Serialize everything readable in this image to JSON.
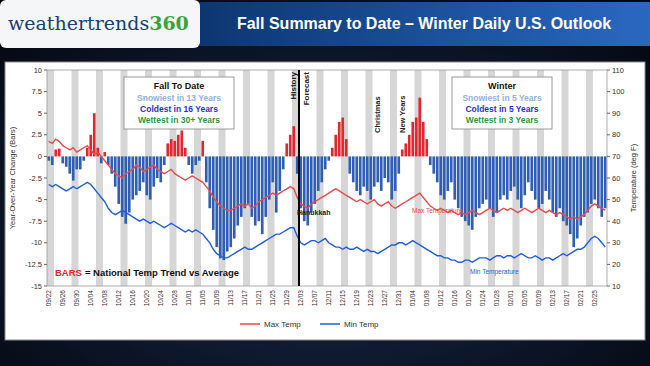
{
  "chart_data": {
    "type": "bar",
    "title": "Fall Summary to Date – Winter Daily U.S. Outlook",
    "logo": [
      "weathertrends",
      "360"
    ],
    "categories": [
      "09/22",
      null,
      null,
      null,
      "09/26",
      null,
      null,
      null,
      "09/30",
      null,
      null,
      null,
      "10/04",
      null,
      null,
      null,
      "10/08",
      null,
      null,
      null,
      "10/12",
      null,
      null,
      null,
      "10/16",
      null,
      null,
      null,
      "10/20",
      null,
      null,
      null,
      "10/24",
      null,
      null,
      null,
      "10/28",
      null,
      null,
      null,
      "11/01",
      null,
      null,
      null,
      "11/05",
      null,
      null,
      null,
      "11/09",
      null,
      null,
      null,
      "11/13",
      null,
      null,
      null,
      "11/17",
      null,
      null,
      null,
      "11/21",
      null,
      null,
      null,
      "11/25",
      null,
      null,
      null,
      "11/29",
      null,
      null,
      null,
      "12/03",
      null,
      null,
      null,
      "12/07",
      null,
      null,
      null,
      "12/11",
      null,
      null,
      null,
      "12/15",
      null,
      null,
      null,
      "12/19",
      null,
      null,
      null,
      "12/23",
      null,
      null,
      null,
      "12/27",
      null,
      null,
      null,
      "12/31",
      null,
      null,
      null,
      "01/04",
      null,
      null,
      null,
      "01/08",
      null,
      null,
      null,
      "01/12",
      null,
      null,
      null,
      "01/16",
      null,
      null,
      null,
      "01/20",
      null,
      null,
      null,
      "01/24",
      null,
      null,
      null,
      "01/28",
      null,
      null,
      null,
      "02/01",
      null,
      null,
      null,
      "02/05",
      null,
      null,
      null,
      "02/09",
      null,
      null,
      null,
      "02/13",
      null,
      null,
      null,
      "02/17",
      null,
      null,
      null,
      "02/21",
      null,
      null,
      null,
      "02/25",
      null,
      null,
      null
    ],
    "series": [
      {
        "name": "BARS",
        "type": "bar",
        "values": [
          -0.5,
          -1.0,
          0.8,
          0.9,
          -0.8,
          -1.2,
          -2.0,
          -2.8,
          -1.5,
          -1.5,
          -0.5,
          1.0,
          2.5,
          5.0,
          1.0,
          -0.8,
          0.5,
          -1.0,
          -2.0,
          -3.5,
          -5.5,
          -7.0,
          -7.8,
          -6.5,
          -5.0,
          -4.5,
          -4.0,
          -3.0,
          -4.5,
          -5.0,
          -3.5,
          -2.5,
          -3.0,
          -1.0,
          1.5,
          2.0,
          1.8,
          2.5,
          3.0,
          1.0,
          -1.0,
          -2.0,
          -1.0,
          -0.5,
          1.8,
          -3.0,
          -6.0,
          -8.5,
          -10.5,
          -11.8,
          -12.0,
          -11.0,
          -10.5,
          -9.5,
          -8.0,
          -7.0,
          -6.0,
          -5.5,
          -7.0,
          -8.0,
          -7.5,
          -9.0,
          -7.0,
          -5.0,
          -3.0,
          -6.5,
          -4.0,
          -1.5,
          1.5,
          2.5,
          3.5,
          -2.0,
          -6.0,
          -7.5,
          -8.0,
          -6.5,
          -5.5,
          -4.0,
          -3.0,
          -1.5,
          -0.5,
          1.0,
          2.5,
          4.0,
          4.5,
          2.0,
          -2.0,
          -3.0,
          -4.0,
          -4.5,
          -3.5,
          -4.0,
          -5.0,
          -3.5,
          -3.0,
          -4.0,
          -2.5,
          -3.0,
          -5.0,
          -4.0,
          -2.0,
          0.8,
          1.5,
          2.5,
          4.0,
          4.5,
          6.8,
          4.0,
          2.0,
          -1.0,
          -2.0,
          -3.0,
          -4.5,
          -5.0,
          -4.0,
          -3.0,
          -5.0,
          -6.0,
          -7.0,
          -7.5,
          -8.0,
          -8.5,
          -7.0,
          -6.0,
          -5.5,
          -5.0,
          -6.0,
          -7.0,
          -6.5,
          -5.0,
          -4.5,
          -5.0,
          -4.0,
          -3.5,
          -5.0,
          -6.0,
          -4.5,
          -3.0,
          -4.0,
          -5.0,
          -6.0,
          -5.5,
          -4.0,
          -5.0,
          -6.5,
          -7.0,
          -6.0,
          -7.5,
          -8.0,
          -9.0,
          -10.5,
          -9.5,
          -8.0,
          -7.0,
          -6.5,
          -5.5,
          -5.0,
          -6.0,
          -7.0,
          -6.0
        ],
        "colors": [
          "#2e5eb5",
          "#2e5eb5",
          "#e0282d",
          "#e0282d",
          "#2e5eb5",
          "#2e5eb5",
          "#2e5eb5",
          "#2e5eb5",
          "#2e5eb5",
          "#2e5eb5",
          "#2e5eb5",
          "#e0282d",
          "#e0282d",
          "#e0282d",
          "#e0282d",
          "#2e5eb5",
          "#e0282d",
          "#2e5eb5",
          "#2e5eb5",
          "#2e5eb5",
          "#2e5eb5",
          "#2e5eb5",
          "#2e5eb5",
          "#2e5eb5",
          "#2e5eb5",
          "#2e5eb5",
          "#2e5eb5",
          "#2e5eb5",
          "#2e5eb5",
          "#2e5eb5",
          "#2e5eb5",
          "#2e5eb5",
          "#2e5eb5",
          "#2e5eb5",
          "#e0282d",
          "#e0282d",
          "#e0282d",
          "#e0282d",
          "#e0282d",
          "#e0282d",
          "#2e5eb5",
          "#2e5eb5",
          "#2e5eb5",
          "#2e5eb5",
          "#e0282d",
          "#2e5eb5",
          "#2e5eb5",
          "#2e5eb5",
          "#2e5eb5",
          "#2e5eb5",
          "#2e5eb5",
          "#2e5eb5",
          "#2e5eb5",
          "#2e5eb5",
          "#2e5eb5",
          "#2e5eb5",
          "#2e5eb5",
          "#2e5eb5",
          "#2e5eb5",
          "#2e5eb5",
          "#2e5eb5",
          "#2e5eb5",
          "#2e5eb5",
          "#2e5eb5",
          "#2e5eb5",
          "#2e5eb5",
          "#2e5eb5",
          "#2e5eb5",
          "#e0282d",
          "#e0282d",
          "#e0282d",
          "#2e5eb5",
          "#2e5eb5",
          "#2e5eb5",
          "#2e5eb5",
          "#2e5eb5",
          "#2e5eb5",
          "#2e5eb5",
          "#2e5eb5",
          "#2e5eb5",
          "#2e5eb5",
          "#e0282d",
          "#e0282d",
          "#e0282d",
          "#e0282d",
          "#e0282d",
          "#2e5eb5",
          "#2e5eb5",
          "#2e5eb5",
          "#2e5eb5",
          "#2e5eb5",
          "#2e5eb5",
          "#2e5eb5",
          "#2e5eb5",
          "#2e5eb5",
          "#2e5eb5",
          "#2e5eb5",
          "#2e5eb5",
          "#2e5eb5",
          "#2e5eb5",
          "#2e5eb5",
          "#e0282d",
          "#e0282d",
          "#e0282d",
          "#e0282d",
          "#e0282d",
          "#e0282d",
          "#e0282d",
          "#e0282d",
          "#2e5eb5",
          "#2e5eb5",
          "#2e5eb5",
          "#2e5eb5",
          "#2e5eb5",
          "#2e5eb5",
          "#2e5eb5",
          "#2e5eb5",
          "#2e5eb5",
          "#2e5eb5",
          "#2e5eb5",
          "#2e5eb5",
          "#2e5eb5",
          "#2e5eb5",
          "#2e5eb5",
          "#2e5eb5",
          "#2e5eb5",
          "#2e5eb5",
          "#2e5eb5",
          "#2e5eb5",
          "#2e5eb5",
          "#2e5eb5",
          "#2e5eb5",
          "#2e5eb5",
          "#2e5eb5",
          "#2e5eb5",
          "#2e5eb5",
          "#2e5eb5",
          "#2e5eb5",
          "#2e5eb5",
          "#2e5eb5",
          "#2e5eb5",
          "#2e5eb5",
          "#2e5eb5",
          "#2e5eb5",
          "#2e5eb5",
          "#2e5eb5",
          "#2e5eb5",
          "#2e5eb5",
          "#2e5eb5",
          "#2e5eb5",
          "#2e5eb5",
          "#2e5eb5",
          "#2e5eb5",
          "#2e5eb5",
          "#2e5eb5",
          "#2e5eb5",
          "#2e5eb5",
          "#2e5eb5",
          "#2e5eb5",
          "#2e5eb5"
        ]
      },
      {
        "name": "Max Temp",
        "type": "line",
        "axis": "y2",
        "color": "#f0484c",
        "values": [
          77,
          76,
          78,
          77,
          75,
          74,
          73,
          74,
          72,
          73,
          74,
          75,
          73,
          71,
          72,
          70,
          68,
          66,
          64,
          62,
          61,
          60,
          62,
          63,
          64,
          66,
          65,
          63,
          64,
          65,
          66,
          64,
          63,
          62,
          63,
          64,
          62,
          61,
          60,
          59,
          60,
          61,
          60,
          59,
          58,
          56,
          54,
          51,
          49,
          47,
          46,
          45,
          45,
          46,
          47,
          48,
          47,
          48,
          46,
          47,
          49,
          50,
          51,
          52,
          53,
          52,
          53,
          54,
          55,
          56,
          55,
          51,
          48,
          47,
          46,
          48,
          49,
          50,
          51,
          52,
          53,
          54,
          55,
          54,
          53,
          52,
          51,
          50,
          49,
          50,
          49,
          48,
          49,
          50,
          48,
          47,
          48,
          49,
          47,
          46,
          47,
          48,
          49,
          50,
          51,
          52,
          53,
          51,
          49,
          47,
          46,
          45,
          46,
          45,
          44,
          45,
          44,
          43,
          44,
          43,
          44,
          45,
          44,
          43,
          44,
          45,
          46,
          45,
          44,
          45,
          46,
          45,
          46,
          45,
          44,
          45,
          46,
          45,
          44,
          45,
          46,
          45,
          44,
          45,
          44,
          43,
          44,
          43,
          42,
          41,
          42,
          41,
          42,
          43,
          45,
          47,
          48,
          47,
          46,
          45
        ]
      },
      {
        "name": "Min Temp",
        "type": "line",
        "axis": "y2",
        "color": "#1f5ee0",
        "values": [
          57,
          56,
          57,
          56,
          55,
          54,
          55,
          56,
          55,
          56,
          57,
          58,
          57,
          55,
          53,
          51,
          49,
          46,
          44,
          43,
          44,
          45,
          44,
          43,
          42,
          41,
          40,
          41,
          40,
          39,
          40,
          39,
          38,
          37,
          38,
          39,
          38,
          37,
          36,
          35,
          36,
          35,
          36,
          35,
          34,
          32,
          30,
          27,
          25,
          24,
          23,
          23,
          24,
          25,
          26,
          27,
          28,
          27,
          27,
          28,
          29,
          30,
          31,
          32,
          33,
          34,
          34,
          35,
          36,
          37,
          37,
          33,
          30,
          29,
          30,
          31,
          31,
          30,
          31,
          32,
          30,
          29,
          28,
          28,
          27,
          28,
          27,
          27,
          28,
          27,
          26,
          27,
          26,
          26,
          25,
          26,
          27,
          28,
          29,
          29,
          30,
          30,
          29,
          30,
          31,
          30,
          29,
          28,
          27,
          26,
          25,
          24,
          24,
          23,
          23,
          22,
          22,
          21,
          21,
          22,
          22,
          21,
          22,
          23,
          23,
          23,
          22,
          23,
          24,
          24,
          23,
          24,
          24,
          23,
          24,
          25,
          24,
          23,
          23,
          24,
          23,
          22,
          23,
          23,
          22,
          23,
          24,
          25,
          24,
          25,
          26,
          27,
          27,
          28,
          30,
          32,
          33,
          32,
          30,
          28
        ]
      }
    ],
    "ylim": [
      -15,
      10
    ],
    "yticks": [
      -15,
      -12.5,
      -10,
      -7.5,
      -5,
      -2.5,
      0,
      2.5,
      5,
      7.5,
      10
    ],
    "y2lim": [
      10,
      110
    ],
    "y2ticks": [
      10,
      20,
      30,
      40,
      50,
      60,
      70,
      80,
      90,
      100,
      110
    ],
    "y_label": "Year-Over-Year Change (Bars)",
    "y2_label": "Temperature (deg F)",
    "grid": false,
    "legend": "bottom",
    "bars_note": "= National Temp Trend vs Average",
    "annotations": [
      "History",
      "Forecast",
      "Christmas",
      "New Years",
      "Hanukkah",
      "Max Temperature",
      "Min Temperature"
    ],
    "boxes": [
      {
        "title": "Fall To Date",
        "lines": [
          "Snowiest in 13 Years",
          "Coldest in 16 Years",
          "Wettest in 30+ Years"
        ],
        "colors": [
          "#8fb2de",
          "#1f35c8",
          "#2a9a3a"
        ]
      },
      {
        "title": "Winter",
        "lines": [
          "Snowiest in 5 Years",
          "Coldest in 5 Years",
          "Wettest in 3 Years"
        ],
        "colors": [
          "#8fb2de",
          "#1f35c8",
          "#2a9a3a"
        ]
      }
    ]
  }
}
